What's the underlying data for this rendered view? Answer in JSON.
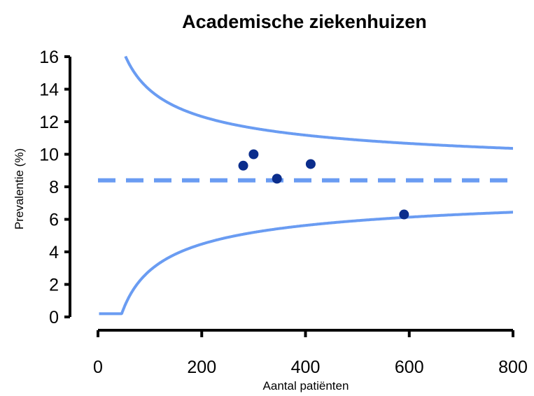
{
  "chart_data": {
    "type": "scatter",
    "title": "Academische ziekenhuizen",
    "xlabel": "Aantal patiënten",
    "ylabel": "Prevalentie (%)",
    "xlim": [
      0,
      800
    ],
    "ylim": [
      0,
      16
    ],
    "x_ticks": [
      "0",
      "200",
      "400",
      "600",
      "800"
    ],
    "y_ticks": [
      "0",
      "2",
      "4",
      "6",
      "8",
      "10",
      "12",
      "14",
      "16"
    ],
    "points": [
      {
        "x": 280,
        "y": 9.3
      },
      {
        "x": 300,
        "y": 10.0
      },
      {
        "x": 345,
        "y": 8.5
      },
      {
        "x": 410,
        "y": 9.4
      },
      {
        "x": 590,
        "y": 6.3
      }
    ],
    "mean_line": {
      "y": 8.4,
      "style": "dashed"
    },
    "control_limits": {
      "center": 8.4,
      "z": 2,
      "x_range": [
        2,
        800
      ],
      "style": "solid"
    },
    "grid": false,
    "colors": {
      "points": "#0b2d8c",
      "lines": "#6a9cf2",
      "axes": "#000000"
    }
  }
}
